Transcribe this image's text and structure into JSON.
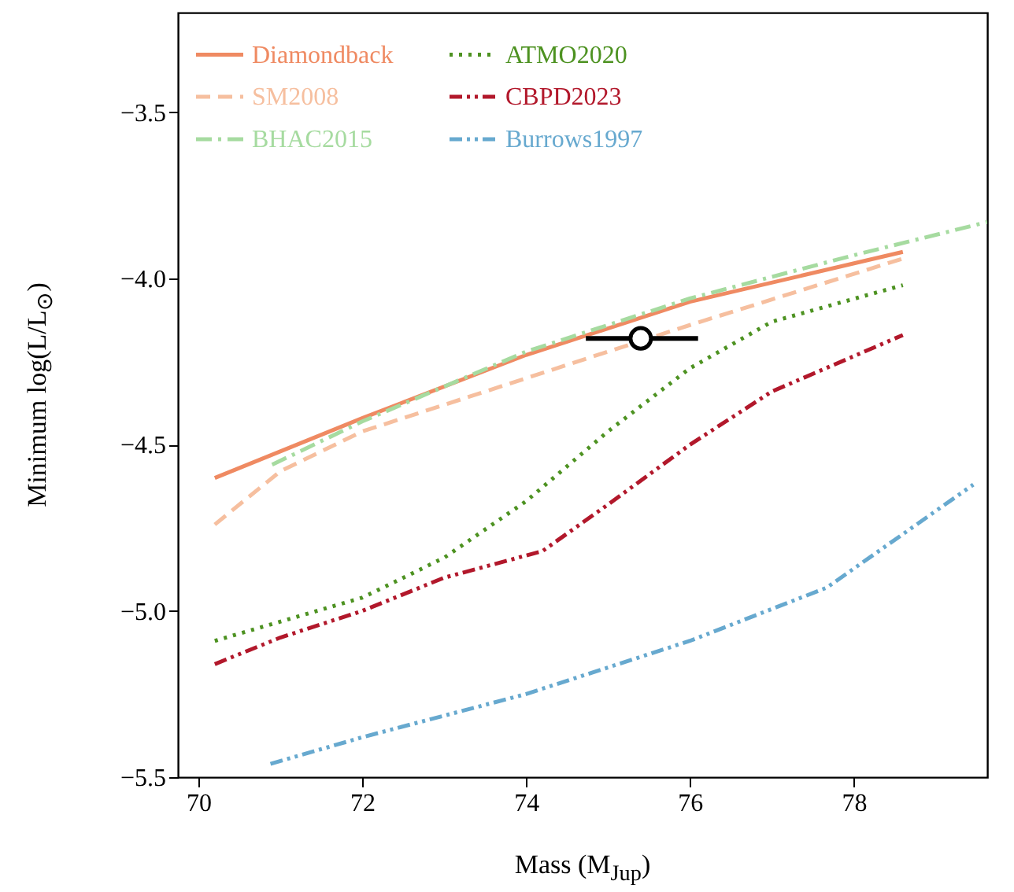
{
  "chart_data": {
    "type": "line",
    "xlabel": "Mass (M$_{Jup}$)",
    "ylabel": "Minimum log(L/L$_{⊙}$)",
    "xlim": [
      69.75,
      79.63
    ],
    "ylim": [
      -5.5,
      -3.2
    ],
    "xticks": [
      70,
      72,
      74,
      76,
      78
    ],
    "yticks": [
      {
        "value": -5.5,
        "label": "−5.5"
      },
      {
        "value": -5.0,
        "label": "−5.0"
      },
      {
        "value": -4.5,
        "label": "−4.5"
      },
      {
        "value": -4.0,
        "label": "−4.0"
      },
      {
        "value": -3.5,
        "label": "−3.5"
      }
    ],
    "legend": "top left",
    "grid": false,
    "series": [
      {
        "name": "Diamondback",
        "color": "#ef8a62",
        "line_style": "solid",
        "x": [
          70.2,
          72,
          74,
          76,
          78.6
        ],
        "values": [
          -4.6,
          -4.42,
          -4.23,
          -4.07,
          -3.92
        ]
      },
      {
        "name": "SM2008",
        "color": "#f6bf9f",
        "line_style": "dashed",
        "x": [
          70.2,
          71,
          72,
          74,
          76,
          78.6
        ],
        "values": [
          -4.74,
          -4.58,
          -4.46,
          -4.3,
          -4.14,
          -3.94
        ]
      },
      {
        "name": "BHAC2015",
        "color": "#a6dba0",
        "line_style": "dashdot",
        "x": [
          70.9,
          72,
          74,
          76,
          78,
          79.63
        ],
        "values": [
          -4.56,
          -4.43,
          -4.22,
          -4.06,
          -3.93,
          -3.83
        ]
      },
      {
        "name": "ATMO2020",
        "color": "#4d9221",
        "line_style": "dotted",
        "x": [
          70.2,
          72,
          73,
          74,
          75,
          76,
          77,
          78.6
        ],
        "values": [
          -5.09,
          -4.96,
          -4.84,
          -4.67,
          -4.46,
          -4.27,
          -4.13,
          -4.02
        ]
      },
      {
        "name": "CBPD2023",
        "color": "#b2182b",
        "line_style": "dashdotdot",
        "x": [
          70.2,
          71,
          72,
          73,
          74.2,
          75,
          76,
          77,
          78.6
        ],
        "values": [
          -5.16,
          -5.08,
          -5.0,
          -4.9,
          -4.82,
          -4.68,
          -4.5,
          -4.34,
          -4.17
        ]
      },
      {
        "name": "Burrows1997",
        "color": "#67a9cf",
        "line_style": "dashdotdot",
        "x": [
          70.88,
          72,
          74,
          76,
          77.67,
          79.46
        ],
        "values": [
          -5.46,
          -5.38,
          -5.25,
          -5.09,
          -4.93,
          -4.62
        ]
      },
      {
        "type": "scatter",
        "color": "#000000",
        "marker": "circle",
        "x": [
          75.4
        ],
        "values": [
          -4.18
        ],
        "xerrors": [
          [
            74.73,
            76.1
          ]
        ],
        "errors": [
          0.03
        ]
      }
    ]
  }
}
